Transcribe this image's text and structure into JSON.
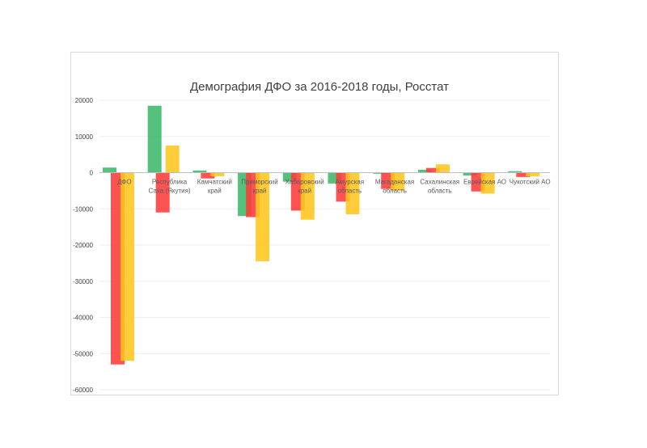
{
  "chart_data": {
    "type": "bar",
    "title": "Демография ДФО за 2016-2018 годы, Росстат",
    "xlabel": "",
    "ylabel": "",
    "ylim": [
      -60000,
      20000
    ],
    "yticks": [
      20000,
      10000,
      0,
      -10000,
      -20000,
      -30000,
      -40000,
      -50000,
      -60000
    ],
    "grid": true,
    "legend": "none",
    "categories": [
      [
        "ДФО"
      ],
      [
        "Республика",
        "Саха (Якутия)"
      ],
      [
        "Камчатский",
        "край"
      ],
      [
        "Приморский",
        "край"
      ],
      [
        "Хабаровский",
        "край"
      ],
      [
        "Амурская",
        "область"
      ],
      [
        "Магаданская",
        "область"
      ],
      [
        "Сахалинская",
        "область"
      ],
      [
        "Еврейская АО"
      ],
      [
        "Чукотский АО"
      ]
    ],
    "series": [
      {
        "color": "#3cb96b",
        "values": [
          1400,
          18500,
          600,
          -12000,
          -2500,
          -3000,
          -300,
          800,
          -800,
          400
        ]
      },
      {
        "color": "#ff3b3b",
        "values": [
          -53000,
          -11000,
          -1600,
          -12300,
          -10500,
          -8000,
          -4500,
          1300,
          -5200,
          -1200
        ]
      },
      {
        "color": "#ffc61e",
        "values": [
          -52000,
          7500,
          -1000,
          -24500,
          -13000,
          -11500,
          -5000,
          2300,
          -5800,
          -1000
        ]
      }
    ]
  }
}
